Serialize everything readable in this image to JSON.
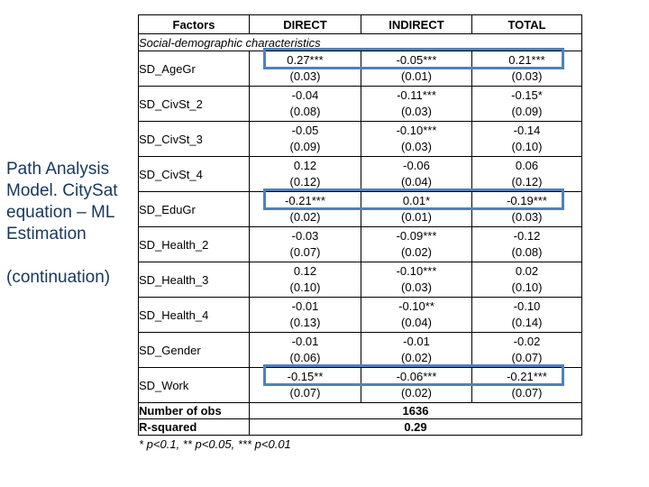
{
  "slide": {
    "title": "Path Analysis\nModel. CitySat\nequation – ML\nEstimation",
    "continuation": "(continuation)",
    "title_color": "#17375E"
  },
  "table": {
    "headers": [
      "Factors",
      "DIRECT",
      "INDIRECT",
      "TOTAL"
    ],
    "section_label": "Social-demographic characteristics",
    "highlight_color": "#4F81BD",
    "rows": [
      {
        "factor": "SD_AgeGr",
        "direct": "0.27***",
        "direct_se": "(0.03)",
        "indirect": "-0.05***",
        "indirect_se": "(0.01)",
        "total": "0.21***",
        "total_se": "(0.03)",
        "highlighted": true
      },
      {
        "factor": "SD_CivSt_2",
        "direct": "-0.04",
        "direct_se": "(0.08)",
        "indirect": "-0.11***",
        "indirect_se": "(0.03)",
        "total": "-0.15*",
        "total_se": "(0.09)",
        "highlighted": false
      },
      {
        "factor": "SD_CivSt_3",
        "direct": "-0.05",
        "direct_se": "(0.09)",
        "indirect": "-0.10***",
        "indirect_se": "(0.03)",
        "total": "-0.14",
        "total_se": "(0.10)",
        "highlighted": false
      },
      {
        "factor": "SD_CivSt_4",
        "direct": "0.12",
        "direct_se": "(0.12)",
        "indirect": "-0.06",
        "indirect_se": "(0.04)",
        "total": "0.06",
        "total_se": "(0.12)",
        "highlighted": false
      },
      {
        "factor": "SD_EduGr",
        "direct": "-0.21***",
        "direct_se": "(0.02)",
        "indirect": "0.01*",
        "indirect_se": "(0.01)",
        "total": "-0.19***",
        "total_se": "(0.03)",
        "highlighted": true
      },
      {
        "factor": "SD_Health_2",
        "direct": "-0.03",
        "direct_se": "(0.07)",
        "indirect": "-0.09***",
        "indirect_se": "(0.02)",
        "total": "-0.12",
        "total_se": "(0.08)",
        "highlighted": false
      },
      {
        "factor": "SD_Health_3",
        "direct": "0.12",
        "direct_se": "(0.10)",
        "indirect": "-0.10***",
        "indirect_se": "(0.03)",
        "total": "0.02",
        "total_se": "(0.10)",
        "highlighted": false
      },
      {
        "factor": "SD_Health_4",
        "direct": "-0.01",
        "direct_se": "(0.13)",
        "indirect": "-0.10**",
        "indirect_se": "(0.04)",
        "total": "-0.10",
        "total_se": "(0.14)",
        "highlighted": false
      },
      {
        "factor": "SD_Gender",
        "direct": "-0.01",
        "direct_se": "(0.06)",
        "indirect": "-0.01",
        "indirect_se": "(0.02)",
        "total": "-0.02",
        "total_se": "(0.07)",
        "highlighted": false
      },
      {
        "factor": "SD_Work",
        "direct": "-0.15**",
        "direct_se": "(0.07)",
        "indirect": "-0.06***",
        "indirect_se": "(0.02)",
        "total": "-0.21***",
        "total_se": "(0.07)",
        "highlighted": true
      }
    ],
    "summary_rows": [
      {
        "label": "Number of obs",
        "value": "1636"
      },
      {
        "label": "R-squared",
        "value": "0.29"
      }
    ],
    "footnote": "* p<0.1, ** p<0.05, *** p<0.01"
  }
}
